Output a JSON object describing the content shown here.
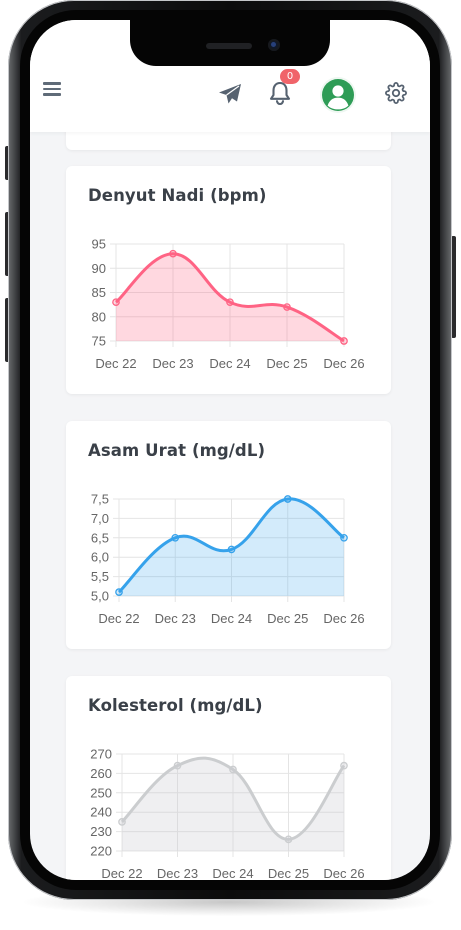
{
  "header": {
    "notification_count": "0",
    "icons": {
      "menu": "hamburger-icon",
      "send": "paper-plane-icon",
      "notifications": "bell-icon",
      "profile": "user-avatar-icon",
      "settings": "gear-icon"
    },
    "badge_color": "#f0646a",
    "avatar_color": "#2e9c56"
  },
  "cards": [
    {
      "title": "Denyut Nadi (bpm)"
    },
    {
      "title": "Asam Urat (mg/dL)"
    },
    {
      "title": "Kolesterol (mg/dL)"
    }
  ],
  "chart_data": [
    {
      "type": "area",
      "title": "Denyut Nadi (bpm)",
      "categories": [
        "Dec 22",
        "Dec 23",
        "Dec 24",
        "Dec 25",
        "Dec 26"
      ],
      "values": [
        83,
        93,
        83,
        82,
        75
      ],
      "yticks": [
        "75",
        "80",
        "85",
        "90",
        "95"
      ],
      "ylim": [
        75,
        95
      ],
      "color": "#ff6384",
      "fill": "rgba(255,99,132,0.25)",
      "grid": true
    },
    {
      "type": "area",
      "title": "Asam Urat (mg/dL)",
      "categories": [
        "Dec 22",
        "Dec 23",
        "Dec 24",
        "Dec 25",
        "Dec 26"
      ],
      "values": [
        5.1,
        6.5,
        6.2,
        7.5,
        6.5
      ],
      "yticks": [
        "5,0",
        "5,5",
        "6,0",
        "6,5",
        "7,0",
        "7,5"
      ],
      "ylim": [
        5.0,
        7.5
      ],
      "color": "#36a2eb",
      "fill": "rgba(54,162,235,0.22)",
      "grid": true
    },
    {
      "type": "area",
      "title": "Kolesterol (mg/dL)",
      "categories": [
        "Dec 22",
        "Dec 23",
        "Dec 24",
        "Dec 25",
        "Dec 26"
      ],
      "values": [
        235,
        264,
        262,
        226,
        264
      ],
      "yticks": [
        "220",
        "230",
        "240",
        "250",
        "260",
        "270"
      ],
      "ylim": [
        220,
        270
      ],
      "color": "#cbcdcf",
      "fill": "rgba(201,203,207,0.3)",
      "grid": true
    }
  ]
}
